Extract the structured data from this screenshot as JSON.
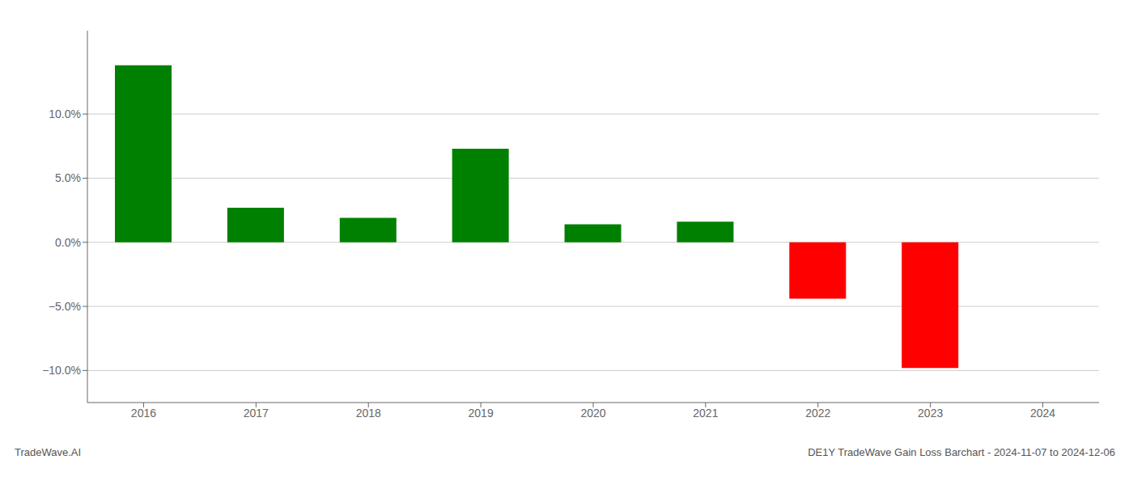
{
  "chart_data": {
    "type": "bar",
    "categories": [
      "2016",
      "2017",
      "2018",
      "2019",
      "2020",
      "2021",
      "2022",
      "2023",
      "2024"
    ],
    "values": [
      0.138,
      0.027,
      0.019,
      0.073,
      0.014,
      0.016,
      -0.044,
      -0.098,
      null
    ],
    "colors": [
      "#008000",
      "#008000",
      "#008000",
      "#008000",
      "#008000",
      "#008000",
      "#ff0000",
      "#ff0000",
      null
    ],
    "ylim": [
      -0.125,
      0.165
    ],
    "yticks": [
      {
        "value": -0.1,
        "label": "−10.0%"
      },
      {
        "value": -0.05,
        "label": "−5.0%"
      },
      {
        "value": 0,
        "label": "0.0%"
      },
      {
        "value": 0.05,
        "label": "5.0%"
      },
      {
        "value": 0.1,
        "label": "10.0%"
      }
    ],
    "grid": true,
    "annotations": [
      "TradeWave.AI",
      "DE1Y TradeWave Gain Loss Barchart - 2024-11-07 to 2024-12-06"
    ]
  }
}
